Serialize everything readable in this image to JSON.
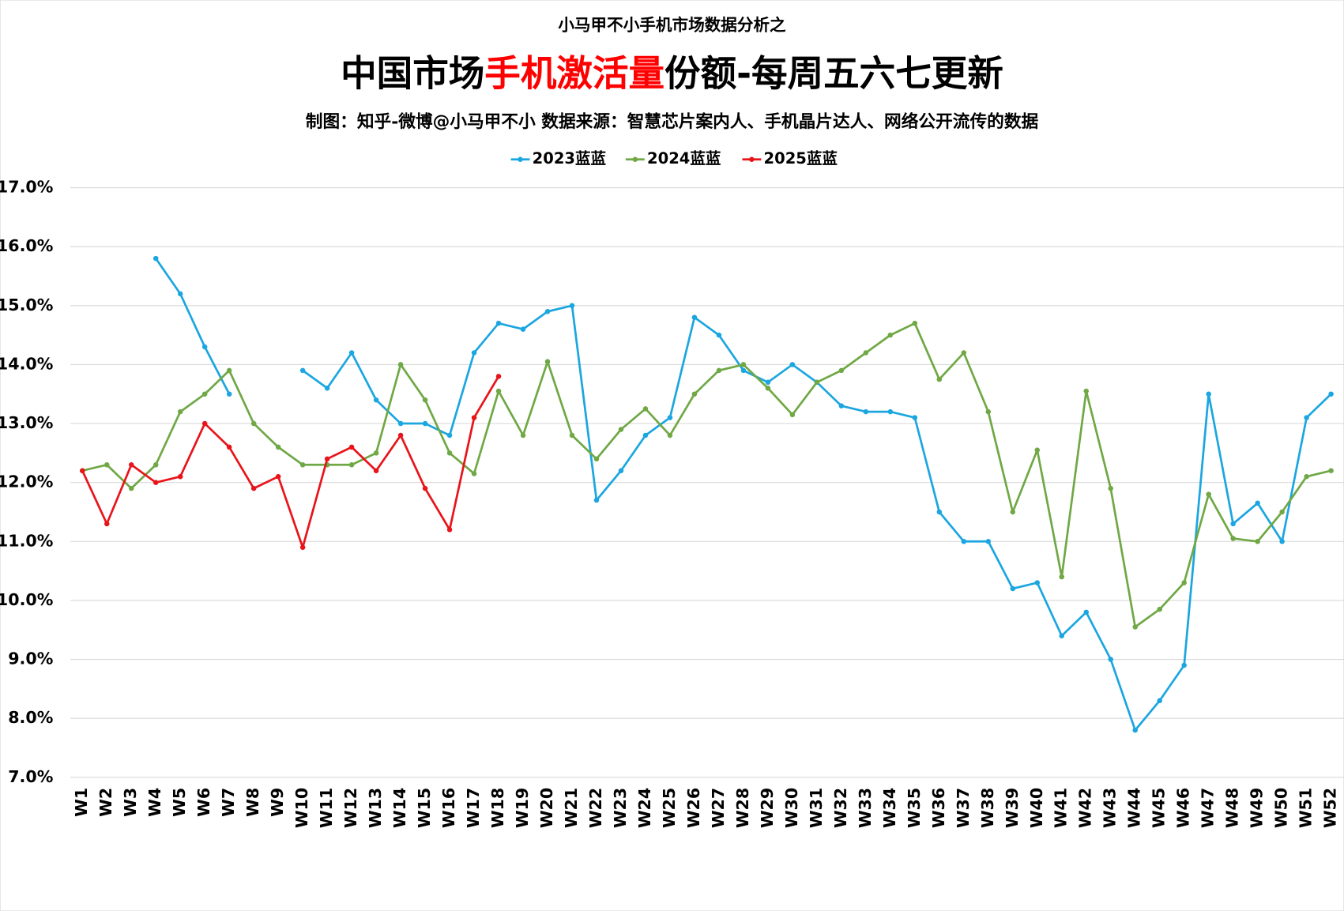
{
  "chart_data": {
    "type": "line",
    "supertitle": "小马甲不小手机市场数据分析之",
    "title_parts": [
      {
        "text": "中国市场",
        "color": "#000000"
      },
      {
        "text": "手机激活量",
        "color": "#ff0000"
      },
      {
        "text": "份额-每周五六七更新",
        "color": "#000000"
      }
    ],
    "subtitle": "制图：知乎-微博@小马甲不小  数据来源：智慧芯片案内人、手机晶片达人、网络公开流传的数据",
    "categories": [
      "W1",
      "W2",
      "W3",
      "W4",
      "W5",
      "W6",
      "W7",
      "W8",
      "W9",
      "W10",
      "W11",
      "W12",
      "W13",
      "W14",
      "W15",
      "W16",
      "W17",
      "W18",
      "W19",
      "W20",
      "W21",
      "W22",
      "W23",
      "W24",
      "W25",
      "W26",
      "W27",
      "W28",
      "W29",
      "W30",
      "W31",
      "W32",
      "W33",
      "W34",
      "W35",
      "W36",
      "W37",
      "W38",
      "W39",
      "W40",
      "W41",
      "W42",
      "W43",
      "W44",
      "W45",
      "W46",
      "W47",
      "W48",
      "W49",
      "W50",
      "W51",
      "W52"
    ],
    "series": [
      {
        "name": "2023蓝蓝",
        "color": "#1ba6e0",
        "values": [
          null,
          null,
          null,
          15.8,
          15.2,
          14.3,
          13.5,
          null,
          null,
          13.9,
          13.6,
          14.2,
          13.4,
          13.0,
          13.0,
          12.8,
          14.2,
          14.7,
          14.6,
          14.9,
          15.0,
          11.7,
          12.2,
          12.8,
          13.1,
          14.8,
          14.5,
          13.9,
          13.7,
          14.0,
          13.7,
          13.3,
          13.2,
          13.2,
          13.1,
          11.5,
          11.0,
          11.0,
          10.2,
          10.3,
          9.4,
          9.8,
          9.0,
          7.8,
          8.3,
          8.9,
          13.5,
          11.3,
          11.65,
          11.0,
          13.1,
          13.5
        ]
      },
      {
        "name": "2024蓝蓝",
        "color": "#70a845",
        "values": [
          12.2,
          12.3,
          11.9,
          12.3,
          13.2,
          13.5,
          13.9,
          13.0,
          12.6,
          12.3,
          12.3,
          12.3,
          12.5,
          14.0,
          13.4,
          12.5,
          12.15,
          13.55,
          12.8,
          14.05,
          12.8,
          12.4,
          12.9,
          13.25,
          12.8,
          13.5,
          13.9,
          14.0,
          13.6,
          13.15,
          13.7,
          13.9,
          14.2,
          14.5,
          14.7,
          13.75,
          14.2,
          13.2,
          11.5,
          12.55,
          10.4,
          13.55,
          11.9,
          9.55,
          9.85,
          10.3,
          11.8,
          11.05,
          11.0,
          11.5,
          12.1,
          12.2
        ]
      },
      {
        "name": "2025蓝蓝",
        "color": "#e8141a",
        "values": [
          12.2,
          11.3,
          12.3,
          12.0,
          12.1,
          13.0,
          12.6,
          11.9,
          12.1,
          10.9,
          12.4,
          12.6,
          12.2,
          12.8,
          11.9,
          11.2,
          13.1,
          13.8,
          null,
          null,
          null,
          null,
          null,
          null,
          null,
          null,
          null,
          null,
          null,
          null,
          null,
          null,
          null,
          null,
          null,
          null,
          null,
          null,
          null,
          null,
          null,
          null,
          null,
          null,
          null,
          null,
          null,
          null,
          null,
          null,
          null,
          null
        ]
      }
    ],
    "ylim": [
      7,
      17
    ],
    "yticks": [
      {
        "value": 7,
        "label": "7.0%"
      },
      {
        "value": 8,
        "label": "8.0%"
      },
      {
        "value": 9,
        "label": "9.0%"
      },
      {
        "value": 10,
        "label": "10.0%"
      },
      {
        "value": 11,
        "label": "11.0%"
      },
      {
        "value": 12,
        "label": "12.0%"
      },
      {
        "value": 13,
        "label": "13.0%"
      },
      {
        "value": 14,
        "label": "14.0%"
      },
      {
        "value": 15,
        "label": "15.0%"
      },
      {
        "value": 16,
        "label": "16.0%"
      },
      {
        "value": 17,
        "label": "17.0%"
      }
    ],
    "grid": true,
    "legend": "top"
  }
}
